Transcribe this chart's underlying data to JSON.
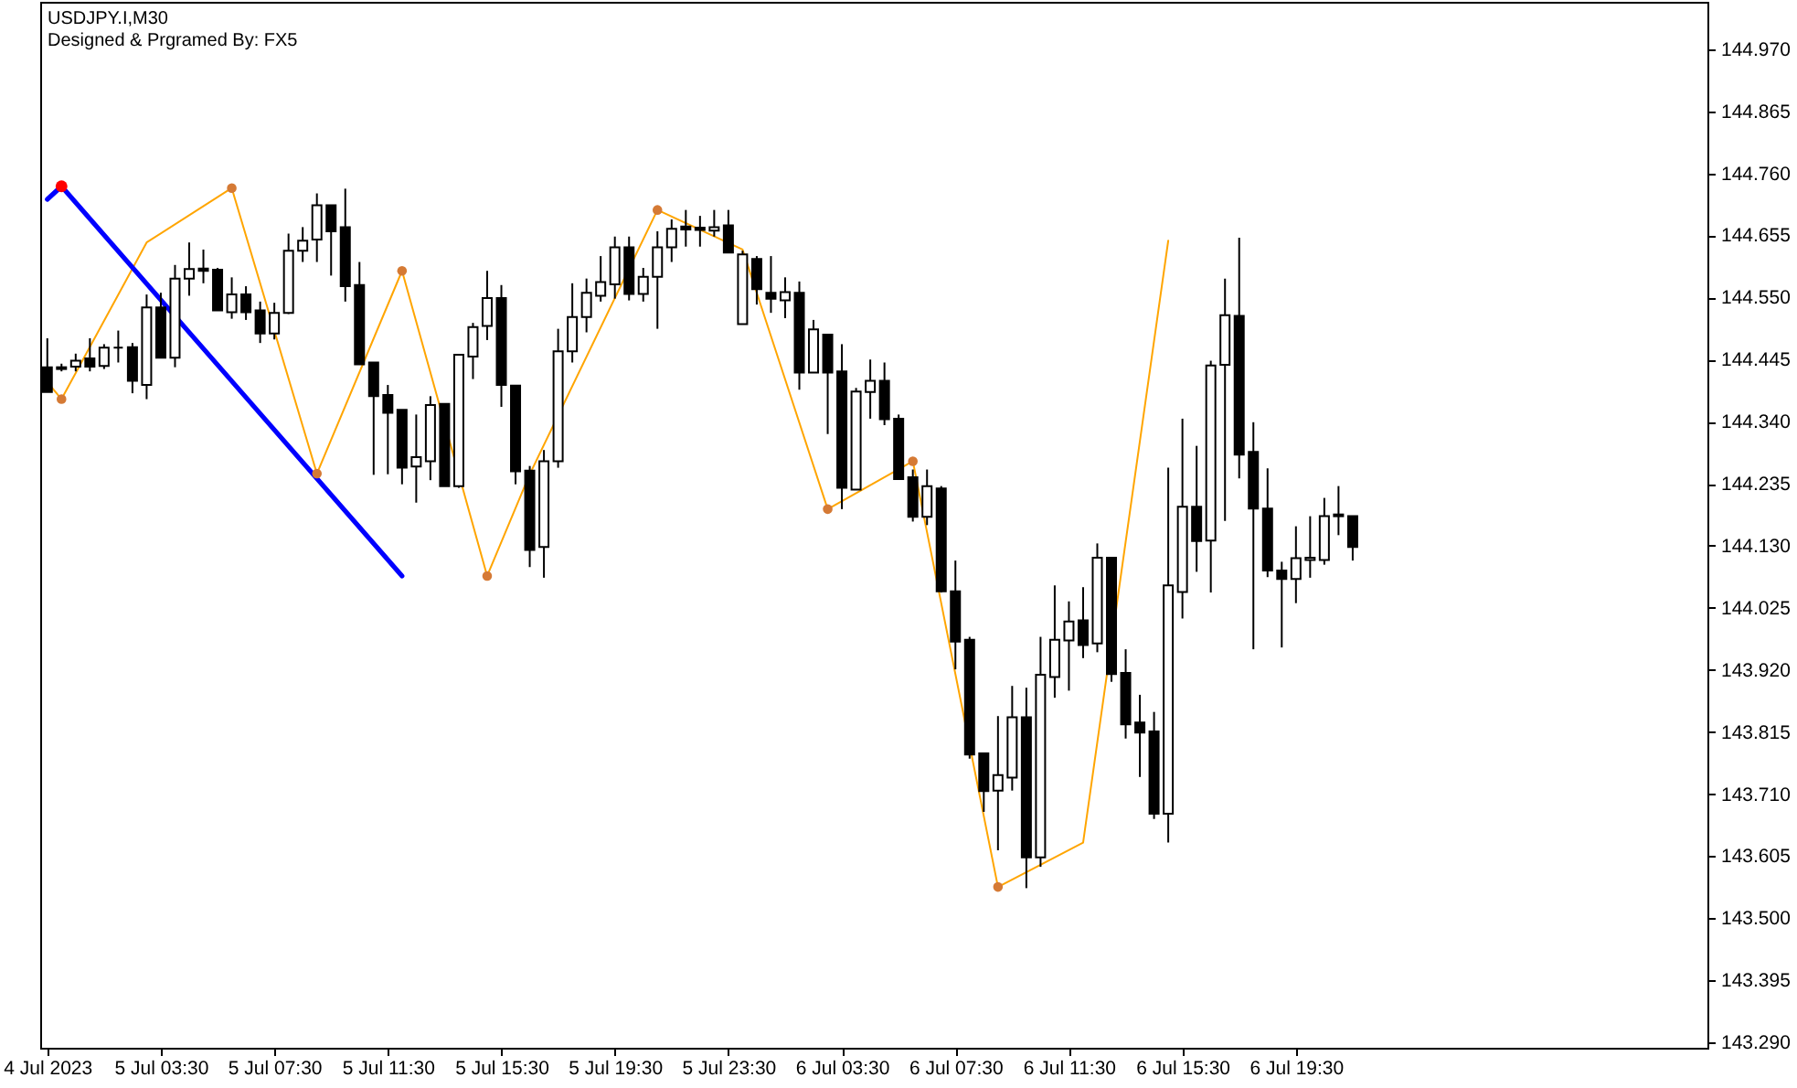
{
  "chart_data": {
    "type": "candlestick",
    "title": "USDJPY.I,M30",
    "annotations": [
      "Designed & Prgramed By: FX5"
    ],
    "color": "#000000",
    "x": [
      "2023-07-04T23:30",
      "2023-07-05T00:00",
      "2023-07-05T00:30",
      "2023-07-05T01:00",
      "2023-07-05T01:30",
      "2023-07-05T02:00",
      "2023-07-05T02:30",
      "2023-07-05T03:00",
      "2023-07-05T03:30",
      "2023-07-05T04:00",
      "2023-07-05T04:30",
      "2023-07-05T05:00",
      "2023-07-05T05:30",
      "2023-07-05T06:00",
      "2023-07-05T06:30",
      "2023-07-05T07:00",
      "2023-07-05T07:30",
      "2023-07-05T08:00",
      "2023-07-05T08:30",
      "2023-07-05T09:00",
      "2023-07-05T09:30",
      "2023-07-05T10:00",
      "2023-07-05T10:30",
      "2023-07-05T11:00",
      "2023-07-05T11:30",
      "2023-07-05T12:00",
      "2023-07-05T12:30",
      "2023-07-05T13:00",
      "2023-07-05T13:30",
      "2023-07-05T14:00",
      "2023-07-05T14:30",
      "2023-07-05T15:00",
      "2023-07-05T15:30",
      "2023-07-05T16:00",
      "2023-07-05T16:30",
      "2023-07-05T17:00",
      "2023-07-05T17:30",
      "2023-07-05T18:00",
      "2023-07-05T18:30",
      "2023-07-05T19:00",
      "2023-07-05T19:30",
      "2023-07-05T20:00",
      "2023-07-05T20:30",
      "2023-07-05T21:00",
      "2023-07-05T21:30",
      "2023-07-05T22:00",
      "2023-07-05T22:30",
      "2023-07-05T23:00",
      "2023-07-05T23:30",
      "2023-07-06T00:00",
      "2023-07-06T00:30",
      "2023-07-06T01:00",
      "2023-07-06T01:30",
      "2023-07-06T02:00",
      "2023-07-06T02:30",
      "2023-07-06T03:00",
      "2023-07-06T03:30",
      "2023-07-06T04:00",
      "2023-07-06T04:30",
      "2023-07-06T05:00",
      "2023-07-06T05:30",
      "2023-07-06T06:00",
      "2023-07-06T06:30",
      "2023-07-06T07:00",
      "2023-07-06T07:30",
      "2023-07-06T08:00",
      "2023-07-06T08:30",
      "2023-07-06T09:00",
      "2023-07-06T09:30",
      "2023-07-06T10:00",
      "2023-07-06T10:30",
      "2023-07-06T11:00",
      "2023-07-06T11:30",
      "2023-07-06T12:00",
      "2023-07-06T12:30",
      "2023-07-06T13:00",
      "2023-07-06T13:30",
      "2023-07-06T14:00",
      "2023-07-06T14:30",
      "2023-07-06T15:00",
      "2023-07-06T15:30",
      "2023-07-06T16:00",
      "2023-07-06T16:30",
      "2023-07-06T17:00",
      "2023-07-06T17:30",
      "2023-07-06T18:00",
      "2023-07-06T18:30",
      "2023-07-06T19:00",
      "2023-07-06T19:30",
      "2023-07-06T20:00",
      "2023-07-06T20:30",
      "2023-07-06T21:00",
      "2023-07-06T21:30"
    ],
    "ohlc": [
      [
        144.432,
        144.481,
        144.39,
        144.39
      ],
      [
        144.432,
        144.438,
        144.425,
        144.429
      ],
      [
        144.433,
        144.455,
        144.425,
        144.443
      ],
      [
        144.447,
        144.481,
        144.425,
        144.433
      ],
      [
        144.434,
        144.471,
        144.429,
        144.465
      ],
      [
        144.465,
        144.494,
        144.44,
        144.465
      ],
      [
        144.466,
        144.473,
        144.388,
        144.409
      ],
      [
        144.402,
        144.555,
        144.378,
        144.533
      ],
      [
        144.533,
        144.558,
        144.447,
        144.448
      ],
      [
        144.448,
        144.605,
        144.432,
        144.582
      ],
      [
        144.582,
        144.643,
        144.553,
        144.598
      ],
      [
        144.599,
        144.631,
        144.574,
        144.595
      ],
      [
        144.597,
        144.6,
        144.528,
        144.528
      ],
      [
        144.525,
        144.584,
        144.514,
        144.555
      ],
      [
        144.555,
        144.569,
        144.512,
        144.525
      ],
      [
        144.528,
        144.543,
        144.473,
        144.489
      ],
      [
        144.489,
        144.541,
        144.479,
        144.524
      ],
      [
        144.524,
        144.658,
        144.522,
        144.629
      ],
      [
        144.629,
        144.669,
        144.61,
        144.646
      ],
      [
        144.648,
        144.726,
        144.61,
        144.706
      ],
      [
        144.706,
        144.706,
        144.587,
        144.662
      ],
      [
        144.669,
        144.734,
        144.543,
        144.569
      ],
      [
        144.571,
        144.61,
        144.437,
        144.437
      ],
      [
        144.44,
        144.44,
        144.25,
        144.383
      ],
      [
        144.385,
        144.402,
        144.251,
        144.355
      ],
      [
        144.36,
        144.36,
        144.234,
        144.262
      ],
      [
        144.264,
        144.352,
        144.203,
        144.28
      ],
      [
        144.273,
        144.383,
        144.241,
        144.368
      ],
      [
        144.37,
        144.37,
        144.231,
        144.231
      ],
      [
        144.231,
        144.453,
        144.228,
        144.453
      ],
      [
        144.45,
        144.507,
        144.412,
        144.5
      ],
      [
        144.502,
        144.595,
        144.478,
        144.549
      ],
      [
        144.549,
        144.571,
        144.365,
        144.402
      ],
      [
        144.401,
        144.401,
        144.234,
        144.256
      ],
      [
        144.257,
        144.265,
        144.094,
        144.123
      ],
      [
        144.128,
        144.292,
        144.076,
        144.273
      ],
      [
        144.273,
        144.497,
        144.262,
        144.459
      ],
      [
        144.459,
        144.574,
        144.44,
        144.517
      ],
      [
        144.517,
        144.582,
        144.491,
        144.558
      ],
      [
        144.553,
        144.62,
        144.543,
        144.576
      ],
      [
        144.572,
        144.653,
        144.548,
        144.635
      ],
      [
        144.635,
        144.653,
        144.545,
        144.556
      ],
      [
        144.556,
        144.6,
        144.543,
        144.585
      ],
      [
        144.585,
        144.662,
        144.497,
        144.635
      ],
      [
        144.635,
        144.682,
        144.61,
        144.666
      ],
      [
        144.67,
        144.698,
        144.636,
        144.665
      ],
      [
        144.668,
        144.688,
        144.636,
        144.664
      ],
      [
        144.663,
        144.698,
        144.653,
        144.669
      ],
      [
        144.672,
        144.698,
        144.626,
        144.626
      ],
      [
        144.505,
        144.629,
        144.505,
        144.623
      ],
      [
        144.615,
        144.62,
        144.538,
        144.564
      ],
      [
        144.558,
        144.62,
        144.524,
        144.548
      ],
      [
        144.545,
        144.584,
        144.515,
        144.559
      ],
      [
        144.558,
        144.577,
        144.394,
        144.423
      ],
      [
        144.423,
        144.512,
        144.423,
        144.496
      ],
      [
        144.487,
        144.487,
        144.319,
        144.423
      ],
      [
        144.425,
        144.471,
        144.192,
        144.228
      ],
      [
        144.225,
        144.397,
        144.225,
        144.391
      ],
      [
        144.39,
        144.445,
        144.345,
        144.409
      ],
      [
        144.409,
        144.44,
        144.334,
        144.344
      ],
      [
        144.345,
        144.352,
        144.243,
        144.243
      ],
      [
        144.246,
        144.259,
        144.171,
        144.179
      ],
      [
        144.179,
        144.259,
        144.165,
        144.231
      ],
      [
        144.227,
        144.231,
        144.051,
        144.053
      ],
      [
        144.053,
        144.105,
        143.921,
        143.968
      ],
      [
        143.971,
        143.976,
        143.77,
        143.777
      ],
      [
        143.779,
        143.779,
        143.68,
        143.715
      ],
      [
        143.716,
        143.842,
        143.615,
        143.742
      ],
      [
        143.738,
        143.893,
        143.716,
        143.84
      ],
      [
        143.84,
        143.89,
        143.551,
        143.603
      ],
      [
        143.603,
        143.976,
        143.587,
        143.912
      ],
      [
        143.908,
        144.063,
        143.873,
        143.971
      ],
      [
        143.97,
        144.036,
        143.885,
        144.002
      ],
      [
        144.004,
        144.06,
        143.94,
        143.962
      ],
      [
        143.965,
        144.134,
        143.95,
        144.11
      ],
      [
        144.11,
        144.11,
        143.9,
        143.913
      ],
      [
        143.915,
        143.955,
        143.804,
        143.828
      ],
      [
        143.831,
        143.878,
        143.739,
        143.814
      ],
      [
        143.816,
        143.849,
        143.668,
        143.677
      ],
      [
        143.677,
        144.262,
        143.628,
        144.063
      ],
      [
        144.052,
        144.345,
        144.007,
        144.196
      ],
      [
        144.196,
        144.299,
        144.086,
        144.138
      ],
      [
        144.139,
        144.443,
        144.051,
        144.435
      ],
      [
        144.436,
        144.582,
        144.172,
        144.52
      ],
      [
        144.519,
        144.651,
        144.244,
        144.284
      ],
      [
        144.289,
        144.339,
        143.955,
        144.193
      ],
      [
        144.193,
        144.261,
        144.077,
        144.088
      ],
      [
        144.088,
        144.103,
        143.958,
        144.074
      ],
      [
        144.074,
        144.163,
        144.033,
        144.109
      ],
      [
        144.106,
        144.18,
        144.076,
        144.11
      ],
      [
        144.106,
        144.211,
        144.098,
        144.18
      ],
      [
        144.183,
        144.231,
        144.148,
        144.18
      ],
      [
        144.18,
        144.18,
        144.105,
        144.128
      ]
    ],
    "series": [
      {
        "type": "line",
        "color": "#ffa500",
        "x": [
          "2023-07-04T23:30",
          "2023-07-05T00:00",
          "2023-07-05T03:00",
          "2023-07-05T06:00",
          "2023-07-05T09:00",
          "2023-07-05T12:00",
          "2023-07-05T15:00",
          "2023-07-05T16:30",
          "2023-07-05T21:00",
          "2023-07-06T00:00",
          "2023-07-06T03:00",
          "2023-07-06T06:00",
          "2023-07-06T09:00",
          "2023-07-06T12:00",
          "2023-07-06T15:00"
        ],
        "values": [
          144.407,
          144.378,
          144.643,
          144.735,
          144.252,
          144.595,
          144.079,
          144.251,
          144.698,
          144.631,
          144.192,
          144.273,
          143.553,
          143.628,
          144.646
        ]
      },
      {
        "type": "line",
        "color": "#0000ff",
        "x": [
          "2023-07-04T23:30",
          "2023-07-05T00:00",
          "2023-07-05T12:00"
        ],
        "values": [
          144.716,
          144.738,
          144.079
        ]
      },
      {
        "type": "scatter",
        "marker": "circle",
        "color": "#d57a35",
        "x": [
          "2023-07-05T00:00",
          "2023-07-05T06:00",
          "2023-07-05T09:00",
          "2023-07-05T12:00",
          "2023-07-05T15:00",
          "2023-07-05T21:00",
          "2023-07-06T03:00",
          "2023-07-06T06:00",
          "2023-07-06T09:00"
        ],
        "values": [
          144.378,
          144.735,
          144.252,
          144.595,
          144.079,
          144.698,
          144.192,
          144.273,
          143.553
        ]
      },
      {
        "type": "scatter",
        "marker": "circle",
        "color": "#ff0000",
        "x": [
          "2023-07-05T00:00"
        ],
        "values": [
          144.738
        ]
      }
    ],
    "xlim": [
      "2023-07-04T23:15",
      "2023-07-07T10:00"
    ],
    "xticks": [
      {
        "value": "2023-07-04T23:30",
        "label": "4 Jul 2023"
      },
      {
        "value": "2023-07-05T03:30",
        "label": "5 Jul 03:30"
      },
      {
        "value": "2023-07-05T07:30",
        "label": "5 Jul 07:30"
      },
      {
        "value": "2023-07-05T11:30",
        "label": "5 Jul 11:30"
      },
      {
        "value": "2023-07-05T15:30",
        "label": "5 Jul 15:30"
      },
      {
        "value": "2023-07-05T19:30",
        "label": "5 Jul 19:30"
      },
      {
        "value": "2023-07-05T23:30",
        "label": "5 Jul 23:30"
      },
      {
        "value": "2023-07-06T03:30",
        "label": "6 Jul 03:30"
      },
      {
        "value": "2023-07-06T07:30",
        "label": "6 Jul 07:30"
      },
      {
        "value": "2023-07-06T11:30",
        "label": "6 Jul 11:30"
      },
      {
        "value": "2023-07-06T15:30",
        "label": "6 Jul 15:30"
      },
      {
        "value": "2023-07-06T19:30",
        "label": "6 Jul 19:30"
      }
    ],
    "ylim": [
      143.281,
      145.05
    ],
    "yticks": [
      {
        "value": 143.29,
        "label": "143.290"
      },
      {
        "value": 143.395,
        "label": "143.395"
      },
      {
        "value": 143.5,
        "label": "143.500"
      },
      {
        "value": 143.605,
        "label": "143.605"
      },
      {
        "value": 143.71,
        "label": "143.710"
      },
      {
        "value": 143.815,
        "label": "143.815"
      },
      {
        "value": 143.92,
        "label": "143.920"
      },
      {
        "value": 144.025,
        "label": "144.025"
      },
      {
        "value": 144.13,
        "label": "144.130"
      },
      {
        "value": 144.235,
        "label": "144.235"
      },
      {
        "value": 144.34,
        "label": "144.340"
      },
      {
        "value": 144.445,
        "label": "144.445"
      },
      {
        "value": 144.55,
        "label": "144.550"
      },
      {
        "value": 144.655,
        "label": "144.655"
      },
      {
        "value": 144.76,
        "label": "144.760"
      },
      {
        "value": 144.865,
        "label": "144.865"
      },
      {
        "value": 144.97,
        "label": "144.970"
      }
    ]
  }
}
